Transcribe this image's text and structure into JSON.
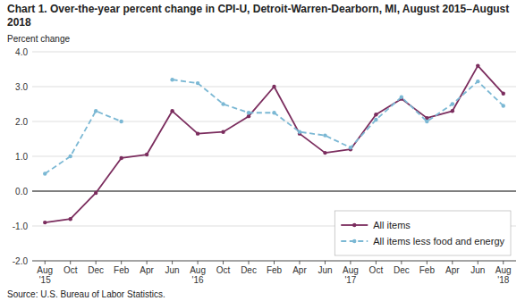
{
  "chart_data": {
    "type": "line",
    "title": "Chart 1. Over-the-year percent change in CPI-U, Detroit-Warren-Dearborn, MI, August 2015–August  2018",
    "y_label": "Percent change",
    "source": "Source: U.S. Bureau of Labor Statistics.",
    "categories": [
      "Aug\n'15",
      "Oct",
      "Dec",
      "Feb",
      "Apr",
      "Jun",
      "Aug\n'16",
      "Oct",
      "Dec",
      "Feb",
      "Apr",
      "Jun",
      "Aug\n'17",
      "Oct",
      "Dec",
      "Feb",
      "Apr",
      "Jun",
      "Aug\n'18"
    ],
    "series": [
      {
        "name": "All items",
        "color": "#7b2d5e",
        "line_style": "solid",
        "marker": "circle",
        "values": [
          -0.9,
          -0.8,
          -0.05,
          0.95,
          1.05,
          2.3,
          1.65,
          1.7,
          2.15,
          3.0,
          1.65,
          1.1,
          1.2,
          2.2,
          2.65,
          2.1,
          2.3,
          3.6,
          2.8
        ]
      },
      {
        "name": "All items less food and energy",
        "color": "#7bb8d4",
        "line_style": "dashed",
        "marker": "circle",
        "values": [
          0.5,
          1.0,
          2.3,
          2.0,
          null,
          3.2,
          3.1,
          2.5,
          2.25,
          2.25,
          1.7,
          1.6,
          1.25,
          2.05,
          2.7,
          2.0,
          2.5,
          3.15,
          2.45
        ]
      }
    ],
    "ylim": [
      -2.0,
      4.0
    ],
    "yticks": [
      {
        "value": -2.0,
        "label": "-2.0"
      },
      {
        "value": -1.0,
        "label": "-1.0"
      },
      {
        "value": 0.0,
        "label": "0.0"
      },
      {
        "value": 1.0,
        "label": "1.0"
      },
      {
        "value": 2.0,
        "label": "2.0"
      },
      {
        "value": 3.0,
        "label": "3.0"
      },
      {
        "value": 4.0,
        "label": "4.0"
      }
    ],
    "grid": true,
    "legend": "lower right"
  }
}
